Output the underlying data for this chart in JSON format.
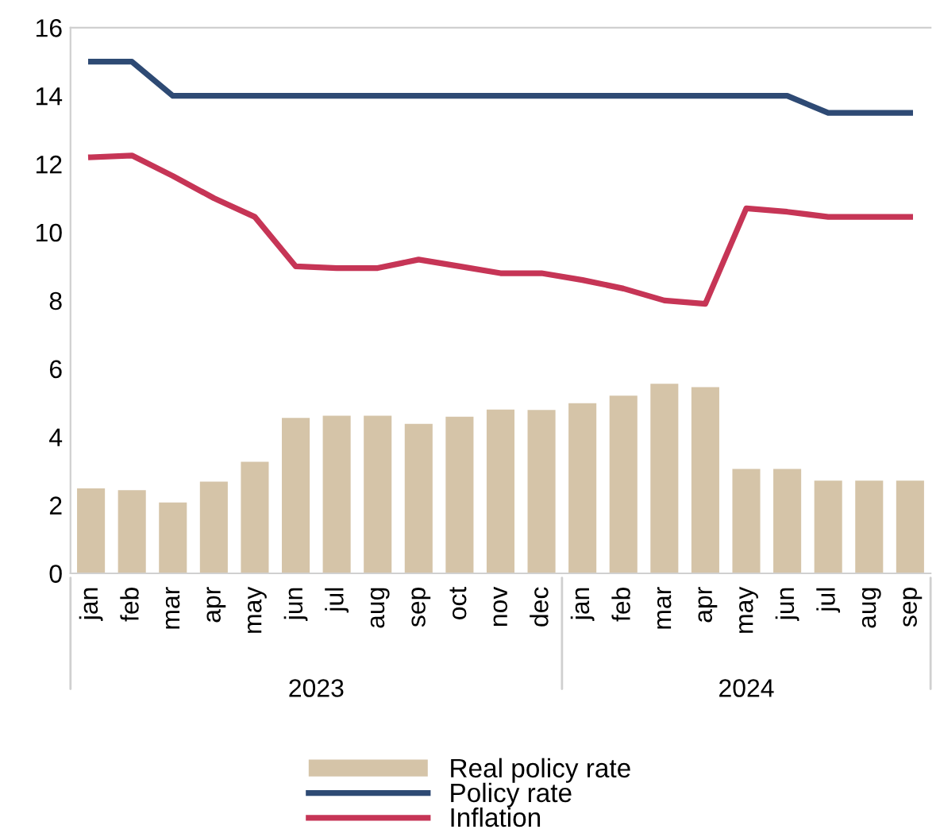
{
  "chart_data": {
    "type": "bar",
    "categories": [
      "jan",
      "feb",
      "mar",
      "apr",
      "may",
      "jun",
      "jul",
      "aug",
      "sep",
      "oct",
      "nov",
      "dec",
      "jan",
      "feb",
      "mar",
      "apr",
      "may",
      "jun",
      "jul",
      "aug",
      "sep"
    ],
    "series": [
      {
        "name": "Real policy rate",
        "color": "#d5c4a8",
        "values": [
          2.49,
          2.44,
          2.08,
          2.69,
          3.27,
          4.56,
          4.62,
          4.62,
          4.38,
          4.59,
          4.8,
          4.79,
          4.99,
          5.21,
          5.56,
          5.46,
          3.06,
          3.06,
          2.72,
          2.72,
          2.72
        ]
      },
      {
        "name": "Policy rate",
        "type": "line",
        "color": "#2e4a74",
        "values": [
          15,
          15,
          14,
          14,
          14,
          14,
          14,
          14,
          14,
          14,
          14,
          14,
          14,
          14,
          14,
          14,
          14,
          14,
          13.5,
          13.5,
          13.5
        ]
      },
      {
        "name": "Inflation",
        "type": "line",
        "color": "#c63556",
        "values": [
          12.2,
          12.25,
          11.65,
          11.0,
          10.45,
          9.0,
          8.95,
          8.95,
          9.2,
          9.0,
          8.8,
          8.8,
          8.6,
          8.35,
          8.0,
          7.9,
          10.7,
          10.6,
          10.45,
          10.45,
          10.45
        ]
      }
    ],
    "annotations": [
      "2023",
      "2024"
    ],
    "ylim": [
      0,
      16
    ],
    "yticks": [
      0,
      2,
      4,
      6,
      8,
      10,
      12,
      14,
      16
    ],
    "grid": false,
    "legend": "bottom"
  }
}
